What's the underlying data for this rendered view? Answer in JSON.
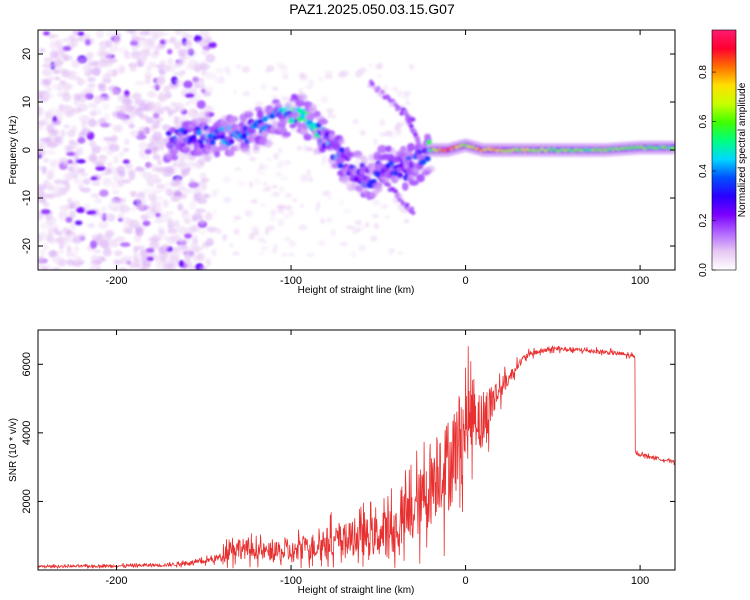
{
  "chart_data": [
    {
      "type": "heatmap",
      "title": "PAZ1.2025.050.03.15.G07",
      "xlabel": "Height of straight line (km)",
      "ylabel": "Frequency (Hz)",
      "xlim": [
        -245,
        120
      ],
      "ylim": [
        -25,
        25
      ],
      "xticks": [
        -200,
        -100,
        0,
        100
      ],
      "yticks": [
        -20,
        -10,
        0,
        10,
        20
      ],
      "grid": false,
      "colorbar": {
        "label": "Normalized spectral amplitude",
        "range": [
          0,
          0.97
        ],
        "ticks": [
          0.0,
          0.2,
          0.4,
          0.6,
          0.8
        ],
        "tick_labels": [
          "0.0",
          "0.2",
          "0.4",
          "0.6",
          "0.8"
        ],
        "colormap": [
          "#ffffff",
          "#e6c8f2",
          "#b266ff",
          "#7a00ff",
          "#2a00ff",
          "#0050ff",
          "#00d8ff",
          "#00ff80",
          "#40ff00",
          "#c8ff00",
          "#ffe000",
          "#ff7000",
          "#ff0030",
          "#ff1a70"
        ]
      },
      "main_ridge": [
        {
          "x": -170,
          "y": 2,
          "a": 0.3
        },
        {
          "x": -150,
          "y": 2.5,
          "a": 0.35
        },
        {
          "x": -130,
          "y": 3,
          "a": 0.35
        },
        {
          "x": -110,
          "y": 6,
          "a": 0.35
        },
        {
          "x": -95,
          "y": 8,
          "a": 0.45
        },
        {
          "x": -85,
          "y": 4,
          "a": 0.4
        },
        {
          "x": -75,
          "y": 0,
          "a": 0.35
        },
        {
          "x": -65,
          "y": -4,
          "a": 0.3
        },
        {
          "x": -55,
          "y": -6,
          "a": 0.3
        },
        {
          "x": -45,
          "y": -3,
          "a": 0.3
        },
        {
          "x": -35,
          "y": -4,
          "a": 0.3
        },
        {
          "x": -25,
          "y": -2,
          "a": 0.3
        },
        {
          "x": -20,
          "y": 0,
          "a": 0.5
        },
        {
          "x": -10,
          "y": 0,
          "a": 0.95
        },
        {
          "x": 0,
          "y": 1,
          "a": 0.6
        },
        {
          "x": 10,
          "y": 0,
          "a": 0.8
        },
        {
          "x": 20,
          "y": 0,
          "a": 0.7
        },
        {
          "x": 50,
          "y": 0,
          "a": 0.6
        },
        {
          "x": 80,
          "y": 0,
          "a": 0.58
        },
        {
          "x": 100,
          "y": 0.5,
          "a": 0.58
        },
        {
          "x": 120,
          "y": 0.5,
          "a": 0.55
        }
      ],
      "secondary_ridges": [
        {
          "from": [
            -55,
            14
          ],
          "to": [
            -30,
            6
          ],
          "a": 0.18
        },
        {
          "from": [
            -50,
            -5
          ],
          "to": [
            -30,
            -13
          ],
          "a": 0.2
        },
        {
          "from": [
            -35,
            8
          ],
          "to": [
            -27,
            2
          ],
          "a": 0.2
        }
      ],
      "note": "Main spectral line near 0 Hz above about -20 km; scattered low-amplitude noise for heights below about -150 km."
    },
    {
      "type": "line",
      "title": "",
      "xlabel": "Height of straight line (km)",
      "ylabel": "SNR (10 * v/v)",
      "xlim": [
        -245,
        120
      ],
      "ylim": [
        0,
        7000
      ],
      "xticks": [
        -200,
        -100,
        0,
        100
      ],
      "yticks": [
        2000,
        4000,
        6000
      ],
      "grid": false,
      "series": [
        {
          "name": "SNR",
          "color": "#e83030",
          "x": [
            -245,
            -200,
            -170,
            -150,
            -140,
            -135,
            -120,
            -100,
            -80,
            -60,
            -50,
            -40,
            -30,
            -20,
            -15,
            -10,
            -5,
            0,
            5,
            10,
            15,
            20,
            25,
            30,
            35,
            40,
            50,
            60,
            70,
            80,
            90,
            97,
            98,
            110,
            120
          ],
          "y": [
            100,
            120,
            150,
            250,
            380,
            700,
            550,
            500,
            800,
            950,
            1000,
            1200,
            1700,
            2400,
            3000,
            3000,
            3600,
            4200,
            4700,
            4200,
            4900,
            5300,
            5600,
            6000,
            6250,
            6350,
            6450,
            6430,
            6400,
            6350,
            6300,
            6200,
            3400,
            3250,
            3150
          ],
          "noise": [
            40,
            50,
            60,
            90,
            150,
            450,
            300,
            400,
            550,
            650,
            750,
            900,
            1100,
            1400,
            1600,
            1700,
            1700,
            1400,
            1300,
            1100,
            800,
            400,
            250,
            150,
            120,
            100,
            80,
            80,
            80,
            80,
            80,
            80,
            60,
            50,
            50
          ]
        }
      ]
    }
  ]
}
